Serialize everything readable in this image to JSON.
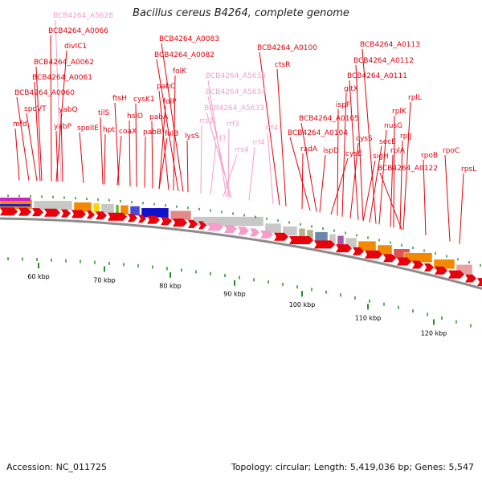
{
  "title": "Bacillus cereus B4264, complete genome",
  "footer": {
    "accession": "Accession: NC_011725",
    "summary": "Topology: circular; Length: 5,419,036 bp; Genes: 5,547"
  },
  "colors": {
    "gene": "#e8000b",
    "rna": "#f59ec9",
    "backbone": "#8c8c8c",
    "tick": "#2a8a2a"
  },
  "scale": {
    "ticks_kbp": [
      60,
      70,
      80,
      90,
      100,
      110,
      120
    ],
    "tick_labels": [
      "60 kbp",
      "70 kbp",
      "80 kbp",
      "90 kbp",
      "100 kbp",
      "110 kbp",
      "120 kbp"
    ]
  },
  "gene_labels": [
    {
      "text": "BCB4264_A5628",
      "kind": "rna"
    },
    {
      "text": "BCB4264_A0066",
      "kind": "gene"
    },
    {
      "text": "divIC1",
      "kind": "gene"
    },
    {
      "text": "BCB4264_A0062",
      "kind": "gene"
    },
    {
      "text": "BCB4264_A0061",
      "kind": "gene"
    },
    {
      "text": "BCB4264_A0060",
      "kind": "gene"
    },
    {
      "text": "spoVT",
      "kind": "gene"
    },
    {
      "text": "yabQ",
      "kind": "gene"
    },
    {
      "text": "mfd",
      "kind": "gene"
    },
    {
      "text": "yabP",
      "kind": "gene"
    },
    {
      "text": "spoIIE",
      "kind": "gene"
    },
    {
      "text": "tilS",
      "kind": "gene"
    },
    {
      "text": "hpt",
      "kind": "gene"
    },
    {
      "text": "ftsH",
      "kind": "gene"
    },
    {
      "text": "coaX",
      "kind": "gene"
    },
    {
      "text": "hslO",
      "kind": "gene"
    },
    {
      "text": "cysK1",
      "kind": "gene"
    },
    {
      "text": "pabB",
      "kind": "gene"
    },
    {
      "text": "pabA",
      "kind": "gene"
    },
    {
      "text": "pabC",
      "kind": "gene"
    },
    {
      "text": "folP",
      "kind": "gene"
    },
    {
      "text": "folB",
      "kind": "gene"
    },
    {
      "text": "folK",
      "kind": "gene"
    },
    {
      "text": "BCB4264_A0082",
      "kind": "gene"
    },
    {
      "text": "BCB4264_A0083",
      "kind": "gene"
    },
    {
      "text": "lysS",
      "kind": "gene"
    },
    {
      "text": "rrs3",
      "kind": "rna"
    },
    {
      "text": "rrl3",
      "kind": "rna"
    },
    {
      "text": "rrf3",
      "kind": "rna"
    },
    {
      "text": "BCB4264_A5635",
      "kind": "rna"
    },
    {
      "text": "BCB4264_A5634",
      "kind": "rna"
    },
    {
      "text": "BCB4264_A5633",
      "kind": "rna"
    },
    {
      "text": "rrs4",
      "kind": "rna"
    },
    {
      "text": "rrl4",
      "kind": "rna"
    },
    {
      "text": "rrf4",
      "kind": "rna"
    },
    {
      "text": "BCB4264_A0100",
      "kind": "gene"
    },
    {
      "text": "ctsR",
      "kind": "gene"
    },
    {
      "text": "radA",
      "kind": "gene"
    },
    {
      "text": "BCB4264_A0104",
      "kind": "gene"
    },
    {
      "text": "BCB4264_A0105",
      "kind": "gene"
    },
    {
      "text": "ispD",
      "kind": "gene"
    },
    {
      "text": "ispF",
      "kind": "gene"
    },
    {
      "text": "gltX",
      "kind": "gene"
    },
    {
      "text": "cysE",
      "kind": "gene"
    },
    {
      "text": "cysS",
      "kind": "gene"
    },
    {
      "text": "BCB4264_A0111",
      "kind": "gene"
    },
    {
      "text": "BCB4264_A0112",
      "kind": "gene"
    },
    {
      "text": "BCB4264_A0113",
      "kind": "gene"
    },
    {
      "text": "sigH",
      "kind": "gene"
    },
    {
      "text": "secE",
      "kind": "gene"
    },
    {
      "text": "nusG",
      "kind": "gene"
    },
    {
      "text": "rplK",
      "kind": "gene"
    },
    {
      "text": "rplA",
      "kind": "gene"
    },
    {
      "text": "rplJ",
      "kind": "gene"
    },
    {
      "text": "rplL",
      "kind": "gene"
    },
    {
      "text": "BCB4264_A0122",
      "kind": "gene"
    },
    {
      "text": "rpoB",
      "kind": "gene"
    },
    {
      "text": "rpoC",
      "kind": "gene"
    },
    {
      "text": "rpsL",
      "kind": "gene"
    }
  ]
}
